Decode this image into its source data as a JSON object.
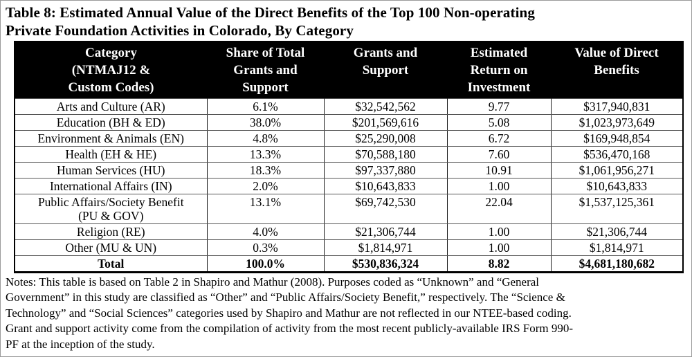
{
  "title": "Table 8: Estimated Annual Value of the Direct Benefits of the Top 100 Non-operating\nPrivate Foundation Activities in Colorado, By Category",
  "palette": {
    "header_bg": "#000000",
    "header_text": "#ffffff",
    "body_text": "#000000",
    "page_bg": "#ffffff"
  },
  "table": {
    "columns": [
      {
        "label": "Category\n(NTMAJ12 &\nCustom Codes)"
      },
      {
        "label": "Share of Total\nGrants and\nSupport"
      },
      {
        "label": "Grants and\nSupport"
      },
      {
        "label": "Estimated\nReturn on\nInvestment"
      },
      {
        "label": "Value of Direct\nBenefits"
      }
    ],
    "rows": [
      [
        "Arts and Culture (AR)",
        "6.1%",
        "$32,542,562",
        "9.77",
        "$317,940,831"
      ],
      [
        "Education (BH & ED)",
        "38.0%",
        "$201,569,616",
        "5.08",
        "$1,023,973,649"
      ],
      [
        "Environment & Animals (EN)",
        "4.8%",
        "$25,290,008",
        "6.72",
        "$169,948,854"
      ],
      [
        "Health (EH & HE)",
        "13.3%",
        "$70,588,180",
        "7.60",
        "$536,470,168"
      ],
      [
        "Human Services (HU)",
        "18.3%",
        "$97,337,880",
        "10.91",
        "$1,061,956,271"
      ],
      [
        "International Affairs (IN)",
        "2.0%",
        "$10,643,833",
        "1.00",
        "$10,643,833"
      ],
      [
        "Public Affairs/Society Benefit\n(PU & GOV)",
        "13.1%",
        "$69,742,530",
        "22.04",
        "$1,537,125,361"
      ],
      [
        "Religion (RE)",
        "4.0%",
        "$21,306,744",
        "1.00",
        "$21,306,744"
      ],
      [
        "Other (MU & UN)",
        "0.3%",
        "$1,814,971",
        "1.00",
        "$1,814,971"
      ]
    ],
    "total": [
      "Total",
      "100.0%",
      "$530,836,324",
      "8.82",
      "$4,681,180,682"
    ]
  },
  "notes": "Notes: This table is based on Table 2 in Shapiro and Mathur (2008). Purposes coded as “Unknown” and “General\nGovernment” in this study are classified as “Other” and “Public Affairs/Society Benefit,” respectively. The “Science &\nTechnology” and “Social Sciences” categories used by Shapiro and Mathur are not reflected in our NTEE-based coding.\nGrant and support activity come from the compilation of activity from the most recent publicly-available IRS Form 990-\nPF at the inception of the study."
}
